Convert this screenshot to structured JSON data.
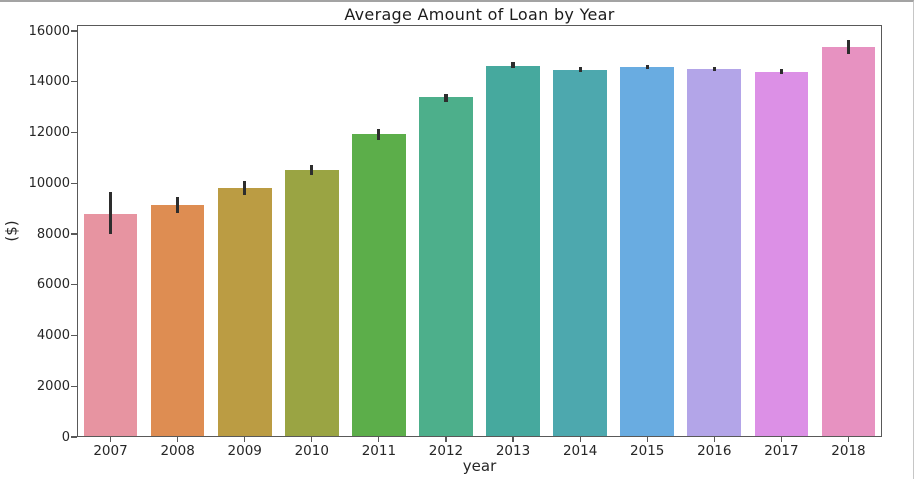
{
  "figure": {
    "title": "Average Amount of Loan by Year",
    "xlabel": "year",
    "ylabel": "($)"
  },
  "chart_data": {
    "type": "bar",
    "title": "Average Amount of Loan by Year",
    "xlabel": "year",
    "ylabel": "($)",
    "categories": [
      "2007",
      "2008",
      "2009",
      "2010",
      "2011",
      "2012",
      "2013",
      "2014",
      "2015",
      "2016",
      "2017",
      "2018"
    ],
    "values": [
      8800,
      9150,
      9830,
      10530,
      11950,
      13400,
      14640,
      14480,
      14600,
      14520,
      14400,
      15370
    ],
    "error_low": [
      8010,
      8840,
      9550,
      10330,
      11710,
      13210,
      14540,
      14390,
      14510,
      14410,
      14310,
      15100
    ],
    "error_high": [
      9640,
      9470,
      10100,
      10730,
      12140,
      13520,
      14780,
      14580,
      14670,
      14600,
      14490,
      15650
    ],
    "bar_colors": [
      "#e794a1",
      "#de8d52",
      "#bb9c43",
      "#9aa443",
      "#5cae4a",
      "#4daf8b",
      "#46a99e",
      "#4da8ae",
      "#69ace1",
      "#b3a5e8",
      "#dc90e6",
      "#e792c1"
    ],
    "yticks": [
      0,
      2000,
      4000,
      6000,
      8000,
      10000,
      12000,
      14000,
      16000
    ],
    "ytick_labels": [
      "0",
      "2000",
      "4000",
      "6000",
      "8000",
      "10000",
      "12000",
      "14000",
      "16000"
    ],
    "ylim": [
      0,
      16240
    ],
    "grid": false,
    "legend_position": "none",
    "error_bar_color": "#2d2d2d",
    "axis_color": "#595959",
    "text_color": "#262626"
  }
}
